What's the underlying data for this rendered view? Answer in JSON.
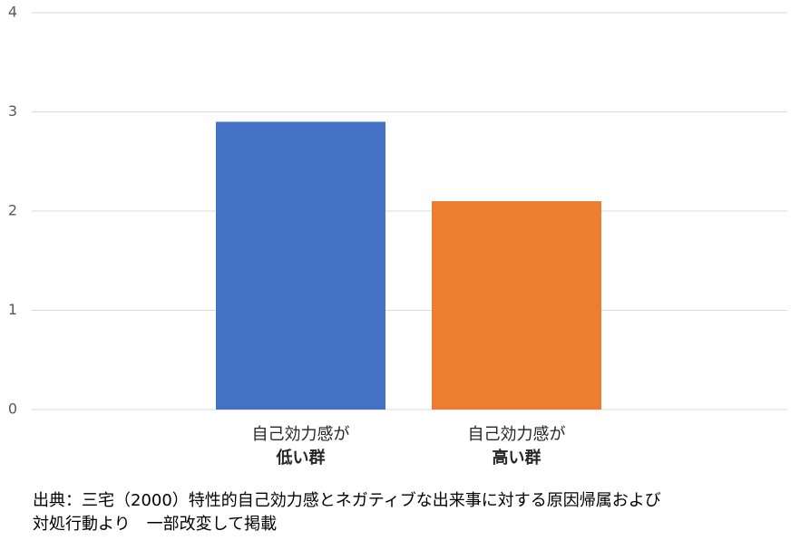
{
  "chart_data": {
    "type": "bar",
    "categories": [
      [
        "自己効力感が",
        "低い群"
      ],
      [
        "自己効力感が",
        "高い群"
      ]
    ],
    "values": [
      2.9,
      2.1
    ],
    "colors": [
      "#4472c4",
      "#ed7d31"
    ],
    "ylim": [
      0,
      4
    ],
    "yticks": [
      0,
      1,
      2,
      3,
      4
    ],
    "grid": true,
    "source": [
      "出典：三宅（2000）特性的自己効力感とネガティブな出来事に対する原因帰属および",
      "対処行動より　一部改変して掲載"
    ]
  }
}
